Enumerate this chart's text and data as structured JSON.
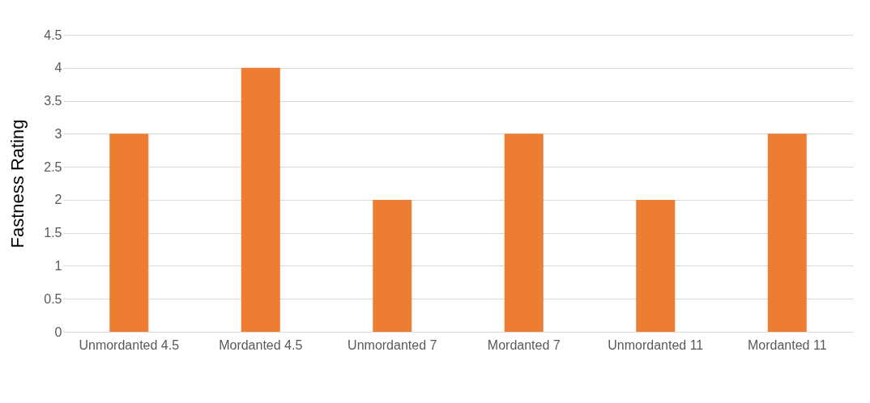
{
  "chart_data": {
    "type": "bar",
    "ylabel": "Fastness Rating",
    "categories": [
      "Unmordanted 4.5",
      "Mordanted 4.5",
      "Unmordanted 7",
      "Mordanted 7",
      "Unmordanted 11",
      "Mordanted 11"
    ],
    "values": [
      3,
      4,
      2,
      3,
      2,
      3
    ],
    "color": "#ed7d31",
    "ylim": [
      0,
      4.5
    ],
    "yticks": [
      0,
      0.5,
      1,
      1.5,
      2,
      2.5,
      3,
      3.5,
      4,
      4.5
    ],
    "grid": "y"
  }
}
